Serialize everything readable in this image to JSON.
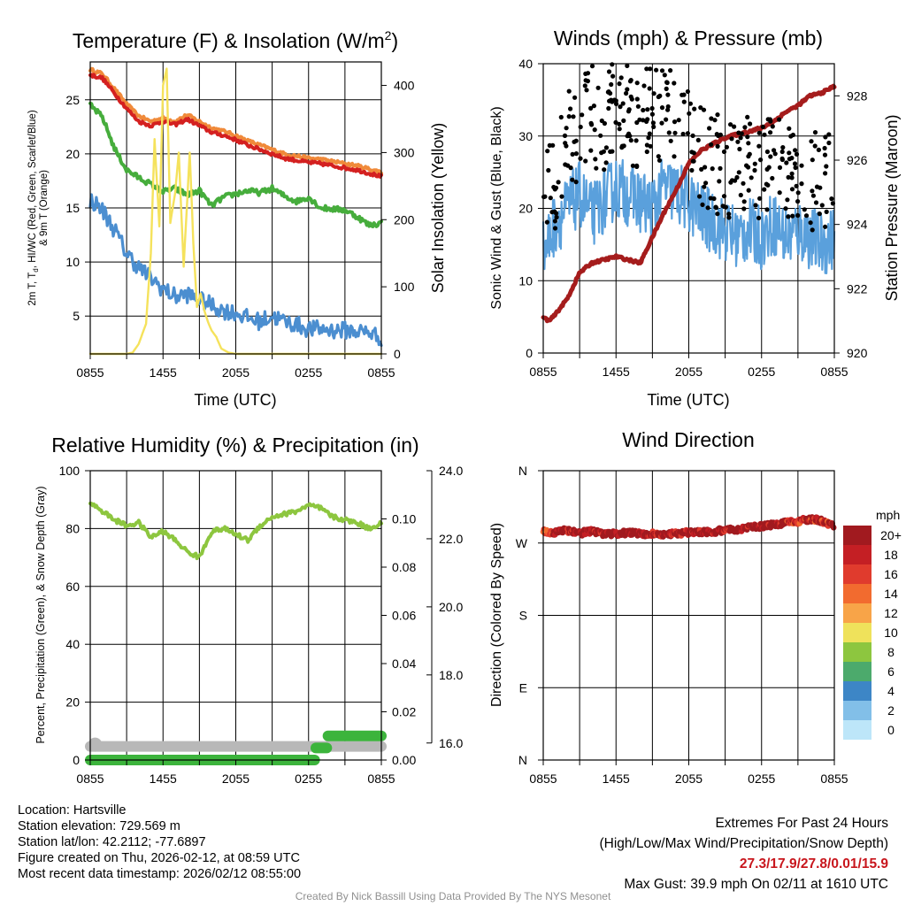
{
  "colors": {
    "red": "#d42020",
    "orange": "#f08a3a",
    "green": "#46ad3c",
    "blue": "#4b8ed0",
    "yellow": "#f5e25c",
    "maroon": "#a51c1c",
    "light_green": "#8dc63f",
    "precip_green": "#3cb43c",
    "snow_gray": "#b8b8b8",
    "black": "#000000",
    "lightblue": "#5aa0dc"
  },
  "panels": {
    "temperature": {
      "title": "Temperature (F) & Insolation (W/m2)",
      "title_main": "Temperature (F) & Insolation (W/m",
      "title_sup": "2",
      "title_close": ")",
      "ylabel_left_line1": "2m T, Td, HI/WC (Red, Green, Scarlet/Blue)",
      "ylabel_left_line1_parts": [
        "2m T, T",
        "d",
        ", HI/WC (Red, Green, Scarlet/Blue)"
      ],
      "ylabel_left_line2": "& 9m T (Orange)",
      "ylabel_right": "Solar Insolation (Yellow)",
      "xlabel": "Time (UTC)"
    },
    "winds": {
      "title": "Winds (mph) & Pressure (mb)",
      "ylabel_left": "Sonic Wind & Gust (Blue, Black)",
      "ylabel_right": "Station Pressure (Maroon)",
      "xlabel": "Time (UTC)"
    },
    "humidity": {
      "title": "Relative Humidity (%) & Precipitation (in)",
      "ylabel_left": "Percent, Precipitation (Green), & Snow Depth (Gray)"
    },
    "direction": {
      "title": "Wind Direction",
      "ylabel_left": "Direction (Colored By Speed)",
      "colorbar_title": "mph",
      "colorbar_labels": [
        "20+",
        "18",
        "16",
        "14",
        "12",
        "10",
        "8",
        "6",
        "4",
        "2",
        "0"
      ],
      "colorbar_colors": [
        "#a11a1f",
        "#c41f24",
        "#e03b2d",
        "#f26b2f",
        "#f8a448",
        "#efe25b",
        "#8dc63f",
        "#4caa6c",
        "#3d86c6",
        "#82bfe8",
        "#bde6f9"
      ]
    }
  },
  "chart_data": [
    {
      "id": "temperature",
      "type": "line",
      "title": "Temperature (F) & Insolation (W/m2)",
      "xlabel": "Time (UTC)",
      "x_tick_labels": [
        "0855",
        "1455",
        "2055",
        "0255",
        "0855"
      ],
      "xlim_hours": [
        0,
        24
      ],
      "ylim_left": [
        1.5,
        28.5
      ],
      "yticks_left": [
        5,
        10,
        15,
        20,
        25
      ],
      "ylim_right": [
        0,
        435
      ],
      "yticks_right": [
        0,
        100,
        200,
        300,
        400
      ],
      "series": [
        {
          "name": "9m T (Orange)",
          "axis": "left",
          "color": "#f08a3a",
          "x": [
            0,
            1,
            2,
            3,
            4,
            5,
            6,
            7,
            8,
            9,
            10,
            11,
            12,
            13,
            14,
            15,
            16,
            17,
            18,
            19,
            20,
            21,
            22,
            23,
            24
          ],
          "y": [
            27.8,
            27.4,
            26.0,
            24.6,
            23.5,
            23.0,
            23.3,
            23.0,
            23.6,
            23.0,
            22.4,
            22.1,
            21.7,
            21.2,
            20.8,
            20.4,
            20.0,
            19.8,
            19.6,
            19.5,
            19.3,
            19.1,
            18.9,
            18.6,
            18.3
          ]
        },
        {
          "name": "2m T (Red)",
          "axis": "left",
          "color": "#d42020",
          "x": [
            0,
            1,
            2,
            3,
            4,
            5,
            6,
            7,
            8,
            9,
            10,
            11,
            12,
            13,
            14,
            15,
            16,
            17,
            18,
            19,
            20,
            21,
            22,
            23,
            24
          ],
          "y": [
            27.3,
            27.0,
            25.6,
            24.2,
            23.0,
            22.6,
            23.0,
            22.7,
            23.2,
            22.6,
            22.0,
            21.7,
            21.3,
            20.8,
            20.4,
            20.0,
            19.6,
            19.4,
            19.2,
            19.1,
            18.9,
            18.7,
            18.5,
            18.2,
            17.9
          ]
        },
        {
          "name": "Td (Green)",
          "axis": "left",
          "color": "#46ad3c",
          "x": [
            0,
            1,
            2,
            3,
            4,
            5,
            6,
            7,
            8,
            9,
            10,
            11,
            12,
            13,
            14,
            15,
            16,
            17,
            18,
            19,
            20,
            21,
            22,
            23,
            24
          ],
          "y": [
            24.5,
            23.4,
            20.5,
            18.5,
            17.8,
            17.2,
            16.5,
            16.8,
            16.2,
            16.6,
            15.2,
            16.0,
            16.3,
            16.6,
            16.4,
            16.8,
            16.1,
            15.6,
            16.0,
            15.0,
            14.9,
            14.8,
            14.2,
            13.4,
            13.6
          ]
        },
        {
          "name": "HI/WC (Blue)",
          "axis": "left",
          "color": "#4b8ed0",
          "x": [
            0,
            1,
            2,
            3,
            4,
            5,
            6,
            7,
            8,
            9,
            10,
            11,
            12,
            13,
            14,
            15,
            16,
            17,
            18,
            19,
            20,
            21,
            22,
            23,
            24
          ],
          "y": [
            15.8,
            14.8,
            13.0,
            10.8,
            9.5,
            8.5,
            7.5,
            6.8,
            7.0,
            6.5,
            6.0,
            5.5,
            5.3,
            4.8,
            4.5,
            5.0,
            4.5,
            4.2,
            3.8,
            3.8,
            3.7,
            3.7,
            3.6,
            3.5,
            3.0
          ]
        },
        {
          "name": "Solar Insolation (Yellow)",
          "axis": "right",
          "color": "#f5e25c",
          "x": [
            0,
            3.0,
            3.5,
            4.0,
            4.6,
            5.0,
            5.3,
            5.7,
            6.0,
            6.3,
            6.6,
            7.0,
            7.3,
            7.7,
            8.0,
            8.2,
            8.5,
            8.8,
            9.1,
            9.4,
            9.7,
            10.0,
            10.4,
            10.8,
            11.4,
            12,
            24
          ],
          "y": [
            0,
            0,
            2,
            15,
            45,
            150,
            320,
            190,
            400,
            425,
            195,
            240,
            300,
            130,
            230,
            300,
            165,
            70,
            90,
            65,
            48,
            35,
            25,
            8,
            2,
            0,
            0
          ]
        }
      ]
    },
    {
      "id": "winds",
      "type": "line",
      "title": "Winds (mph) & Pressure (mb)",
      "xlabel": "Time (UTC)",
      "x_tick_labels": [
        "0855",
        "1455",
        "2055",
        "0255",
        "0855"
      ],
      "xlim_hours": [
        0,
        24
      ],
      "ylim_left": [
        0,
        40
      ],
      "yticks_left": [
        0,
        10,
        20,
        30,
        40
      ],
      "ylim_right": [
        920,
        929
      ],
      "yticks_right": [
        920,
        922,
        924,
        926,
        928
      ],
      "series": [
        {
          "name": "Sonic Wind (Blue)",
          "axis": "left",
          "color": "#5aa0dc",
          "x": [
            0,
            1,
            2,
            3,
            4,
            5,
            6,
            7,
            8,
            9,
            10,
            11,
            12,
            13,
            14,
            15,
            16,
            17,
            18,
            19,
            20,
            21,
            22,
            23,
            24
          ],
          "y": [
            14,
            18,
            20,
            22,
            19,
            21,
            23,
            22,
            21,
            20,
            23,
            22,
            21,
            19,
            18,
            17,
            16,
            17,
            16,
            18,
            16,
            17,
            16,
            15,
            16
          ]
        },
        {
          "name": "Gust (Black)",
          "axis": "left",
          "color": "#000000",
          "style": "points",
          "x": [
            0,
            1,
            2,
            3,
            4,
            5,
            6,
            7,
            8,
            9,
            10,
            11,
            12,
            13,
            14,
            15,
            16,
            17,
            18,
            19,
            20,
            21,
            22,
            23,
            24
          ],
          "y": [
            21,
            24,
            29,
            31,
            33,
            31,
            35,
            33,
            32,
            34,
            33,
            32,
            31,
            27,
            26,
            26,
            25,
            26,
            24,
            27,
            25,
            25,
            24,
            23,
            24
          ]
        },
        {
          "name": "Station Pressure (Maroon)",
          "axis": "right",
          "color": "#a51c1c",
          "x": [
            0,
            0.5,
            1,
            2,
            3,
            4,
            5,
            6,
            7,
            8,
            9,
            10,
            11,
            12,
            13,
            14,
            15,
            16,
            17,
            18,
            19,
            20,
            21,
            22,
            23,
            24
          ],
          "y": [
            921.1,
            921.0,
            921.2,
            921.7,
            922.5,
            922.8,
            922.9,
            923.0,
            922.9,
            922.8,
            923.6,
            924.4,
            925.1,
            925.9,
            926.3,
            926.5,
            926.7,
            926.8,
            926.9,
            927.0,
            927.2,
            927.5,
            927.7,
            928.0,
            928.1,
            928.3
          ]
        }
      ]
    },
    {
      "id": "humidity",
      "type": "line",
      "title": "Relative Humidity (%) & Precipitation (in)",
      "x_tick_labels": [
        "0855",
        "1455",
        "2055",
        "0255",
        "0855"
      ],
      "xlim_hours": [
        0,
        24
      ],
      "ylim_left": [
        0,
        100
      ],
      "yticks_left": [
        0,
        20,
        40,
        60,
        80,
        100
      ],
      "ylim_precip": [
        0,
        0.12
      ],
      "yticks_precip": [
        "0.00",
        "0.02",
        "0.04",
        "0.06",
        "0.08",
        "0.10"
      ],
      "ylim_snow": [
        15.5,
        24.0
      ],
      "yticks_snow": [
        "16.0",
        "18.0",
        "20.0",
        "22.0",
        "24.0"
      ],
      "series": [
        {
          "name": "Relative Humidity (Green)",
          "axis": "left",
          "color": "#8dc63f",
          "x": [
            0,
            1,
            2,
            3,
            4,
            5,
            6,
            7,
            8,
            9,
            10,
            11,
            12,
            13,
            14,
            15,
            16,
            17,
            18,
            19,
            20,
            21,
            22,
            23,
            24
          ],
          "y": [
            89,
            86,
            83,
            81,
            82,
            77,
            79,
            76,
            72,
            70,
            79,
            80,
            78,
            76,
            81,
            84,
            85,
            86,
            88,
            87,
            84,
            83,
            82,
            80,
            82
          ]
        },
        {
          "name": "Precipitation (Green)",
          "axis": "precip",
          "color": "#3cb43c",
          "x": [
            0,
            18.5,
            18.6,
            19.5,
            19.6,
            24
          ],
          "y": [
            0.0,
            0.0,
            0.005,
            0.005,
            0.01,
            0.01
          ]
        },
        {
          "name": "Snow Depth (Gray)",
          "axis": "snow",
          "color": "#b8b8b8",
          "x": [
            0,
            24
          ],
          "y": [
            15.9,
            15.9
          ]
        }
      ]
    },
    {
      "id": "direction",
      "type": "scatter",
      "title": "Wind Direction",
      "x_tick_labels": [
        "0855",
        "1455",
        "2055",
        "0255",
        "0855"
      ],
      "xlim_hours": [
        0,
        24
      ],
      "y_tick_labels": [
        "N",
        "E",
        "S",
        "W",
        "N"
      ],
      "ylim_deg": [
        0,
        360
      ],
      "series": [
        {
          "name": "Direction (Colored By Speed)",
          "color": "#a11a1f",
          "x": [
            0,
            1,
            2,
            3,
            4,
            5,
            6,
            7,
            8,
            9,
            10,
            11,
            12,
            13,
            14,
            15,
            16,
            17,
            18,
            19,
            20,
            21,
            22,
            23,
            24
          ],
          "y": [
            285,
            283,
            286,
            282,
            285,
            281,
            282,
            283,
            281,
            282,
            280,
            282,
            283,
            284,
            284,
            286,
            287,
            289,
            291,
            293,
            295,
            297,
            300,
            297,
            292
          ]
        }
      ]
    }
  ],
  "info": {
    "location": "Location: Hartsville",
    "elevation": "Station elevation: 729.569 m",
    "latlon": "Station lat/lon: 42.2112; -77.6897",
    "created": "Figure created on Thu, 2026-02-12, at 08:59 UTC",
    "recent": "Most recent data timestamp: 2026/02/12 08:55:00",
    "extremes_title": "Extremes For Past 24 Hours",
    "extremes_subtitle": "(High/Low/Max Wind/Precipitation/Snow Depth)",
    "extremes_values": "27.3/17.9/27.8/0.01/15.9",
    "max_gust": "Max Gust: 39.9 mph On 02/11 at 1610 UTC",
    "credit": "Created By Nick Bassill Using Data Provided By The NYS Mesonet"
  }
}
